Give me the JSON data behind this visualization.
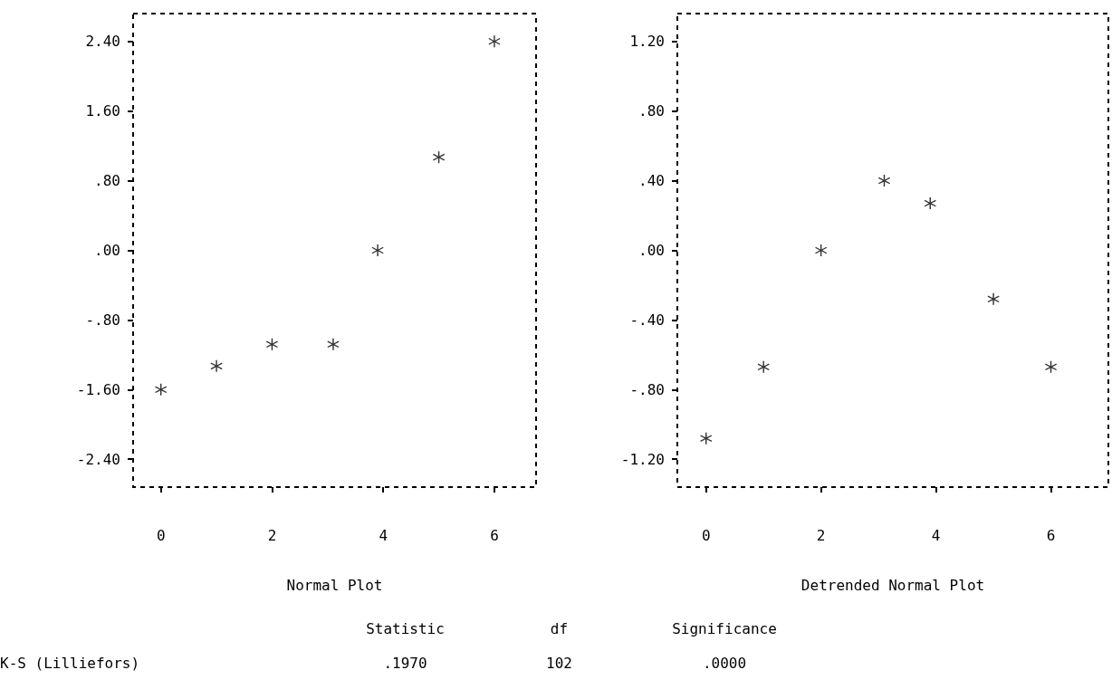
{
  "chart_data": [
    {
      "type": "scatter",
      "xlabel": "Normal Plot",
      "x": [
        0,
        1,
        2,
        3.1,
        3.9,
        5,
        6
      ],
      "series": [
        {
          "color": "#000000",
          "values": [
            -1.6,
            -1.33,
            -1.08,
            -1.08,
            0,
            1.07,
            2.4
          ]
        }
      ],
      "marker": "star",
      "grid": false,
      "xlim": [
        -0.5,
        6.75
      ],
      "xticks": [
        0,
        2,
        4,
        6
      ],
      "ylim": [
        -2.72,
        2.72
      ],
      "yticks": [
        {
          "value": -2.4,
          "label": "-2.40"
        },
        {
          "value": -1.6,
          "label": "-1.60"
        },
        {
          "value": -0.8,
          "label": "-.80"
        },
        {
          "value": 0,
          "label": ".00"
        },
        {
          "value": 0.8,
          "label": ".80"
        },
        {
          "value": 1.6,
          "label": "1.60"
        },
        {
          "value": 2.4,
          "label": "2.40"
        }
      ]
    },
    {
      "type": "scatter",
      "xlabel": "Detrended Normal Plot",
      "x": [
        0,
        1,
        2,
        3.1,
        3.9,
        5,
        6
      ],
      "series": [
        {
          "color": "#000000",
          "values": [
            -1.08,
            -0.67,
            0,
            0.4,
            0.27,
            -0.28,
            -0.67
          ]
        }
      ],
      "marker": "star",
      "grid": false,
      "xlim": [
        -0.5,
        7
      ],
      "xticks": [
        0,
        2,
        4,
        6
      ],
      "ylim": [
        -1.36,
        1.36
      ],
      "yticks": [
        {
          "value": -1.2,
          "label": "-1.20"
        },
        {
          "value": -0.8,
          "label": "-.80"
        },
        {
          "value": -0.4,
          "label": "-.40"
        },
        {
          "value": 0,
          "label": ".00"
        },
        {
          "value": 0.4,
          "label": ".40"
        },
        {
          "value": 0.8,
          "label": ".80"
        },
        {
          "value": 1.2,
          "label": "1.20"
        }
      ]
    },
    {
      "type": "other",
      "annotations": [
        "Statistic",
        "df",
        "Significance",
        "K-S (Lilliefors)",
        ".1970",
        "102",
        ".0000"
      ]
    }
  ]
}
